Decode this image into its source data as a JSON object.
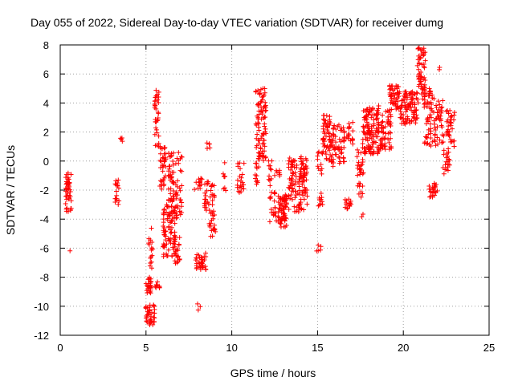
{
  "chart_data": {
    "type": "scatter",
    "title": "Day 055 of 2022, Sidereal Day-to-day VTEC variation (SDTVAR) for receiver dumg",
    "xlabel": "GPS time / hours",
    "ylabel": "SDTVAR / TECUs",
    "xlim": [
      0,
      25
    ],
    "ylim": [
      -12,
      8
    ],
    "xticks": [
      0,
      5,
      10,
      15,
      20,
      25
    ],
    "yticks": [
      -12,
      -10,
      -8,
      -6,
      -4,
      -2,
      0,
      2,
      4,
      6,
      8
    ],
    "grid": true,
    "marker": "+",
    "color": "#ff0000",
    "series": [
      {
        "name": "SDTVAR",
        "clusters": [
          {
            "x": [
              0.3,
              0.65
            ],
            "y": [
              -3.5,
              -0.8
            ],
            "n": 45
          },
          {
            "x": [
              0.5,
              0.6
            ],
            "y": [
              -6.2,
              -6.0
            ],
            "n": 1
          },
          {
            "x": [
              3.2,
              3.45
            ],
            "y": [
              -3.0,
              -1.3
            ],
            "n": 16
          },
          {
            "x": [
              3.5,
              3.65
            ],
            "y": [
              1.2,
              1.6
            ],
            "n": 4
          },
          {
            "x": [
              4.95,
              5.5
            ],
            "y": [
              -11.3,
              -9.9
            ],
            "n": 40
          },
          {
            "x": [
              5.0,
              5.3
            ],
            "y": [
              -9.1,
              -8.0
            ],
            "n": 26
          },
          {
            "x": [
              5.15,
              5.4
            ],
            "y": [
              -7.5,
              -4.5
            ],
            "n": 16
          },
          {
            "x": [
              5.55,
              5.85
            ],
            "y": [
              -8.8,
              -8.3
            ],
            "n": 8
          },
          {
            "x": [
              5.5,
              5.75
            ],
            "y": [
              1.0,
              5.0
            ],
            "n": 34
          },
          {
            "x": [
              5.8,
              6.15
            ],
            "y": [
              -2.0,
              1.0
            ],
            "n": 36
          },
          {
            "x": [
              6.0,
              6.7
            ],
            "y": [
              -6.6,
              -3.0
            ],
            "n": 80
          },
          {
            "x": [
              6.3,
              7.1
            ],
            "y": [
              -4.0,
              0.6
            ],
            "n": 80
          },
          {
            "x": [
              6.6,
              7.0
            ],
            "y": [
              -7.5,
              -5.0
            ],
            "n": 22
          },
          {
            "x": [
              7.9,
              8.5
            ],
            "y": [
              -7.5,
              -6.3
            ],
            "n": 36
          },
          {
            "x": [
              7.8,
              8.3
            ],
            "y": [
              -2.0,
              -1.0
            ],
            "n": 14
          },
          {
            "x": [
              8.4,
              9.0
            ],
            "y": [
              -3.5,
              -1.3
            ],
            "n": 34
          },
          {
            "x": [
              8.6,
              9.05
            ],
            "y": [
              -5.2,
              -3.5
            ],
            "n": 20
          },
          {
            "x": [
              8.0,
              8.2
            ],
            "y": [
              -10.3,
              -9.8
            ],
            "n": 3
          },
          {
            "x": [
              8.5,
              8.8
            ],
            "y": [
              0.5,
              1.3
            ],
            "n": 5
          },
          {
            "x": [
              9.5,
              9.7
            ],
            "y": [
              -3.2,
              0.7
            ],
            "n": 8
          },
          {
            "x": [
              10.3,
              10.8
            ],
            "y": [
              -2.2,
              0.0
            ],
            "n": 22
          },
          {
            "x": [
              11.3,
              11.6
            ],
            "y": [
              -1.6,
              0.0
            ],
            "n": 12
          },
          {
            "x": [
              11.4,
              12.0
            ],
            "y": [
              0.0,
              5.0
            ],
            "n": 90
          },
          {
            "x": [
              12.1,
              12.4
            ],
            "y": [
              -2.0,
              1.0
            ],
            "n": 12
          },
          {
            "x": [
              12.2,
              12.6
            ],
            "y": [
              -4.2,
              -2.0
            ],
            "n": 20
          },
          {
            "x": [
              12.5,
              12.8
            ],
            "y": [
              -1.1,
              -0.6
            ],
            "n": 8
          },
          {
            "x": [
              12.7,
              13.2
            ],
            "y": [
              -4.6,
              -2.3
            ],
            "n": 70
          },
          {
            "x": [
              13.3,
              14.4
            ],
            "y": [
              -3.5,
              0.3
            ],
            "n": 110
          },
          {
            "x": [
              14.0,
              14.3
            ],
            "y": [
              -2.2,
              -0.5
            ],
            "n": 14
          },
          {
            "x": [
              14.9,
              15.2
            ],
            "y": [
              -6.2,
              -5.4
            ],
            "n": 5
          },
          {
            "x": [
              15.0,
              15.3
            ],
            "y": [
              -3.5,
              -2.2
            ],
            "n": 10
          },
          {
            "x": [
              15.0,
              15.3
            ],
            "y": [
              -1.2,
              1.0
            ],
            "n": 12
          },
          {
            "x": [
              15.3,
              15.8
            ],
            "y": [
              0.0,
              3.2
            ],
            "n": 60
          },
          {
            "x": [
              15.8,
              16.6
            ],
            "y": [
              -0.5,
              2.5
            ],
            "n": 60
          },
          {
            "x": [
              16.6,
              17.0
            ],
            "y": [
              -3.5,
              -2.6
            ],
            "n": 14
          },
          {
            "x": [
              16.7,
              17.1
            ],
            "y": [
              0.8,
              2.7
            ],
            "n": 18
          },
          {
            "x": [
              17.3,
              17.7
            ],
            "y": [
              -2.5,
              0.8
            ],
            "n": 30
          },
          {
            "x": [
              17.5,
              17.7
            ],
            "y": [
              -3.9,
              -3.5
            ],
            "n": 2
          },
          {
            "x": [
              17.6,
              18.6
            ],
            "y": [
              0.5,
              3.8
            ],
            "n": 120
          },
          {
            "x": [
              18.5,
              19.3
            ],
            "y": [
              0.8,
              3.5
            ],
            "n": 60
          },
          {
            "x": [
              19.2,
              19.8
            ],
            "y": [
              3.5,
              5.2
            ],
            "n": 50
          },
          {
            "x": [
              19.8,
              20.8
            ],
            "y": [
              2.5,
              4.8
            ],
            "n": 90
          },
          {
            "x": [
              20.8,
              21.3
            ],
            "y": [
              4.0,
              7.8
            ],
            "n": 60
          },
          {
            "x": [
              21.2,
              21.7
            ],
            "y": [
              1.0,
              5.0
            ],
            "n": 50
          },
          {
            "x": [
              21.5,
              22.0
            ],
            "y": [
              -2.6,
              -1.5
            ],
            "n": 24
          },
          {
            "x": [
              21.7,
              22.3
            ],
            "y": [
              1.0,
              4.5
            ],
            "n": 40
          },
          {
            "x": [
              22.0,
              22.3
            ],
            "y": [
              6.2,
              6.5
            ],
            "n": 2
          },
          {
            "x": [
              22.3,
              22.7
            ],
            "y": [
              -1.0,
              2.5
            ],
            "n": 26
          },
          {
            "x": [
              22.5,
              23.0
            ],
            "y": [
              1.0,
              3.5
            ],
            "n": 30
          }
        ]
      }
    ]
  }
}
